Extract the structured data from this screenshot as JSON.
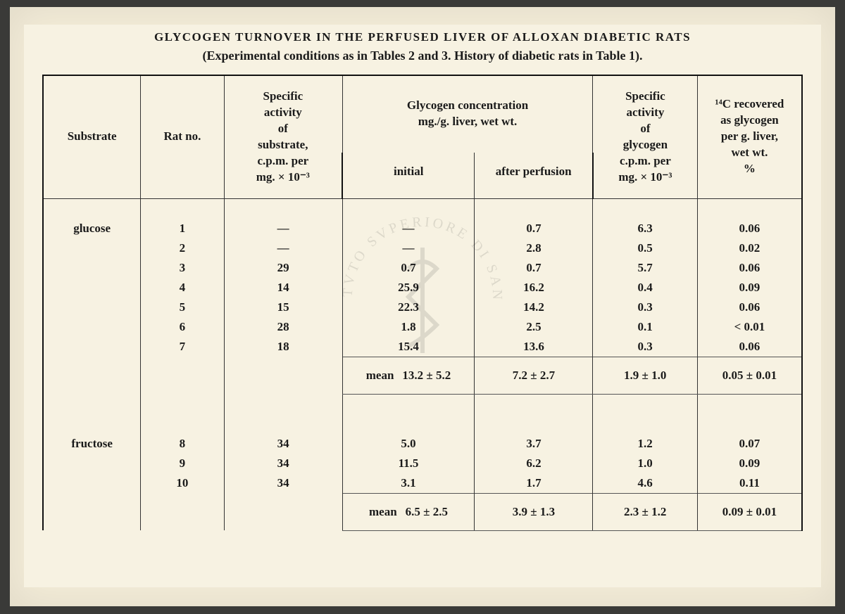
{
  "title": "GLYCOGEN TURNOVER IN THE PERFUSED LIVER OF ALLOXAN DIABETIC RATS",
  "subtitle": "(Experimental conditions as in Tables 2 and 3.  History of diabetic rats in Table 1).",
  "headers": {
    "substrate": "Substrate",
    "rat_no": "Rat no.",
    "spec_act_sub": "Specific\nactivity\nof\nsubstrate,\nc.p.m. per\nmg. × 10⁻³",
    "glyc_conc": "Glycogen concentration\nmg./g. liver, wet wt.",
    "initial": "initial",
    "after": "after perfusion",
    "spec_act_gly": "Specific\nactivity\nof\nglycogen\nc.p.m. per\nmg. × 10⁻³",
    "recovered": "¹⁴C recovered\nas glycogen\nper g. liver,\nwet wt.\n%"
  },
  "groups": [
    {
      "substrate": "glucose",
      "rows": [
        {
          "rat": "1",
          "sa": "—",
          "init": "—",
          "after": "0.7",
          "sag": "6.3",
          "rec": "0.06"
        },
        {
          "rat": "2",
          "sa": "—",
          "init": "—",
          "after": "2.8",
          "sag": "0.5",
          "rec": "0.02"
        },
        {
          "rat": "3",
          "sa": "29",
          "init": "0.7",
          "after": "0.7",
          "sag": "5.7",
          "rec": "0.06"
        },
        {
          "rat": "4",
          "sa": "14",
          "init": "25.9",
          "after": "16.2",
          "sag": "0.4",
          "rec": "0.09"
        },
        {
          "rat": "5",
          "sa": "15",
          "init": "22.3",
          "after": "14.2",
          "sag": "0.3",
          "rec": "0.06"
        },
        {
          "rat": "6",
          "sa": "28",
          "init": "1.8",
          "after": "2.5",
          "sag": "0.1",
          "rec": "< 0.01"
        },
        {
          "rat": "7",
          "sa": "18",
          "init": "15.4",
          "after": "13.6",
          "sag": "0.3",
          "rec": "0.06"
        }
      ],
      "mean": {
        "label": "mean",
        "init": "13.2 ± 5.2",
        "after": "7.2 ± 2.7",
        "sag": "1.9  ±  1.0",
        "rec": "0.05  ±  0.01"
      }
    },
    {
      "substrate": "fructose",
      "rows": [
        {
          "rat": "8",
          "sa": "34",
          "init": "5.0",
          "after": "3.7",
          "sag": "1.2",
          "rec": "0.07"
        },
        {
          "rat": "9",
          "sa": "34",
          "init": "11.5",
          "after": "6.2",
          "sag": "1.0",
          "rec": "0.09"
        },
        {
          "rat": "10",
          "sa": "34",
          "init": "3.1",
          "after": "1.7",
          "sag": "4.6",
          "rec": "0.11"
        }
      ],
      "mean": {
        "label": "mean",
        "init": "6.5 ± 2.5",
        "after": "3.9 ± 1.3",
        "sag": "2.3  ±  1.2",
        "rec": "0.09  ±  0.01"
      }
    }
  ],
  "watermark": "ISTITVTO SVPERIORE DI SANITÀ"
}
